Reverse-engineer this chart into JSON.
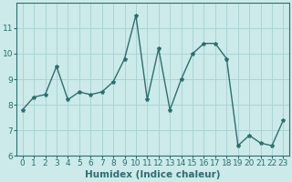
{
  "x": [
    0,
    1,
    2,
    3,
    4,
    5,
    6,
    7,
    8,
    9,
    10,
    11,
    12,
    13,
    14,
    15,
    16,
    17,
    18,
    19,
    20,
    21,
    22,
    23
  ],
  "y": [
    7.8,
    8.3,
    8.4,
    9.5,
    8.2,
    8.5,
    8.4,
    8.5,
    8.9,
    9.8,
    11.5,
    8.2,
    10.2,
    7.8,
    9.0,
    10.0,
    10.4,
    10.4,
    9.8,
    6.4,
    6.8,
    6.5,
    6.4,
    7.4
  ],
  "line_color": "#2d6e6e",
  "marker": "*",
  "marker_size": 3,
  "bg_color": "#cceaea",
  "grid_color": "#aad4d4",
  "xlabel": "Humidex (Indice chaleur)",
  "ylim": [
    6,
    12
  ],
  "xlim": [
    -0.5,
    23.5
  ],
  "yticks": [
    6,
    7,
    8,
    9,
    10,
    11
  ],
  "xticks": [
    0,
    1,
    2,
    3,
    4,
    5,
    6,
    7,
    8,
    9,
    10,
    11,
    12,
    13,
    14,
    15,
    16,
    17,
    18,
    19,
    20,
    21,
    22,
    23
  ],
  "spine_color": "#2d6e6e",
  "label_color": "#2d6e6e",
  "tick_color": "#2d6e6e",
  "font_size": 6.5,
  "xlabel_fontsize": 7.5,
  "linewidth": 1.0
}
